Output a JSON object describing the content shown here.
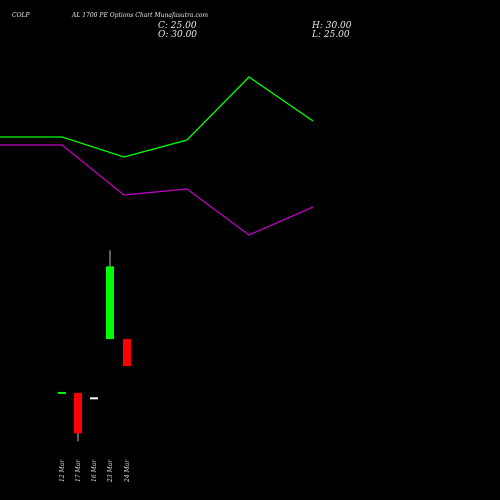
{
  "header": {
    "symbol": "COLP",
    "title": "AL 1700 PE Options Chart Munafasutra.com",
    "close": "C: 25.00",
    "high": "H: 30.00",
    "open": "O: 30.00",
    "low": "L: 25.00"
  },
  "chart_data": {
    "type": "line+candlestick",
    "lines": [
      {
        "color": "#00ff00",
        "y": [
          137,
          137,
          157,
          140,
          77,
          121
        ]
      },
      {
        "color": "#c000c0",
        "y": [
          145,
          145,
          195,
          189,
          235,
          207
        ]
      }
    ],
    "line_x": [
      0,
      62,
      124,
      187,
      249,
      313
    ],
    "candles": [
      {
        "date": "12 Mar",
        "open": 30.0,
        "high": 30.0,
        "low": 30.0,
        "close": 30.0,
        "color": "#00ff00"
      },
      {
        "date": "17 Mar",
        "open": 30.0,
        "high": 30.0,
        "low": 21.0,
        "close": 22.5,
        "color": "#ff0000"
      },
      {
        "date": "16 Mar",
        "open": 29.0,
        "high": 29.0,
        "low": 29.0,
        "close": 29.0,
        "color": "#ffffff"
      },
      {
        "date": "23 Mar",
        "open": 40.0,
        "high": 56.5,
        "low": 40.0,
        "close": 53.5,
        "color": "#00ff00"
      },
      {
        "date": "24 Mar",
        "open": 40.0,
        "high": 40.0,
        "low": 35.0,
        "close": 35.0,
        "color": "#ff0000"
      }
    ],
    "candle_y_range": [
      19.4,
      58.4
    ]
  }
}
